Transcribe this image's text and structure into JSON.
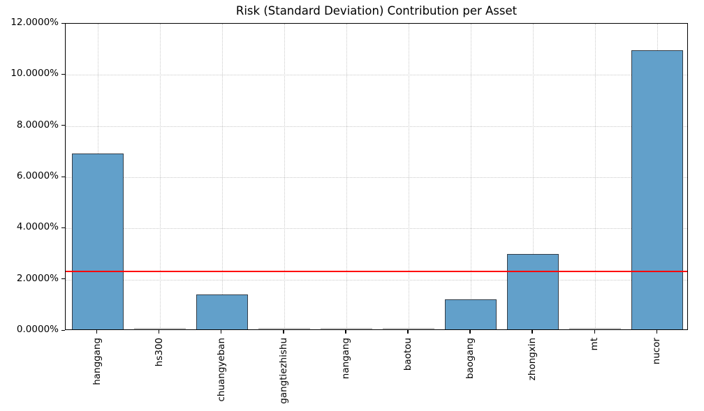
{
  "chart_data": {
    "type": "bar",
    "title": "Risk (Standard Deviation) Contribution per Asset",
    "categories": [
      "hanggang",
      "hs300",
      "chuangyeban",
      "gangtiezhishu",
      "nangang",
      "baotou",
      "baogang",
      "zhongxin",
      "mt",
      "nucor"
    ],
    "values": [
      6.87,
      0.0,
      1.36,
      0.0,
      0.0,
      0.0,
      1.16,
      2.94,
      0.0,
      10.92
    ],
    "value_unit": "%",
    "xlabel": "",
    "ylabel": "",
    "ylim": [
      0,
      12
    ],
    "ytick_step": 2,
    "ytick_labels": [
      "0.0000%",
      "2.0000%",
      "4.0000%",
      "6.0000%",
      "8.0000%",
      "10.0000%",
      "12.0000%"
    ],
    "grid": "dotted, both axes",
    "legend": "none",
    "reference_line": {
      "value": 2.32,
      "meaning": "average risk contribution",
      "color": "#ff0000",
      "style": "solid horizontal"
    },
    "colors": {
      "bar_fill": "#62a0ca",
      "bar_edge": "#333d47",
      "grid": "#c9c9c9",
      "axis": "#000000",
      "zero_bar": "#c4c4c4",
      "background": "#ffffff"
    }
  }
}
